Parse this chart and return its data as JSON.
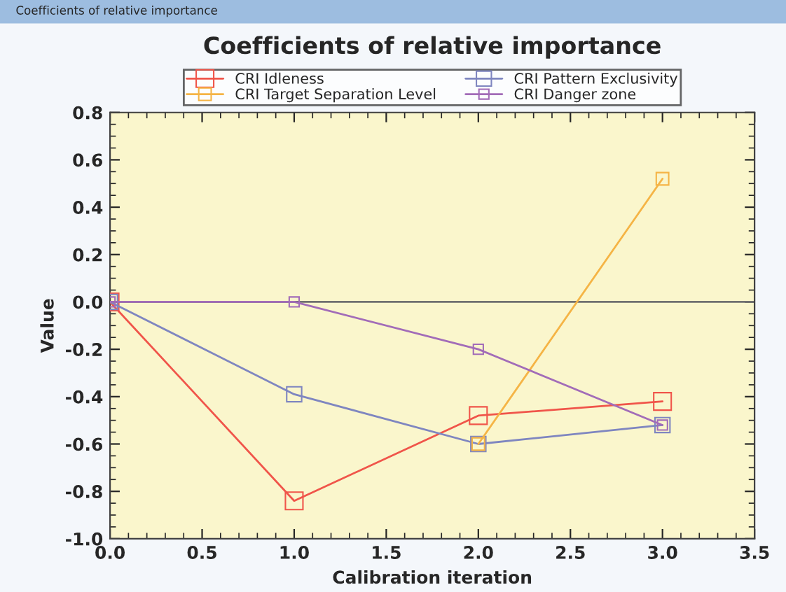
{
  "chart_data": {
    "type": "line",
    "title": "Coefficients of relative importance",
    "xlabel": "Calibration iteration",
    "ylabel": "Value",
    "annotations": [
      "Coefficients of relative importance"
    ],
    "x": [
      0,
      1,
      2,
      3
    ],
    "series": [
      {
        "name": "CRI Idleness",
        "color": "#f0554a",
        "values": [
          0,
          -0.84,
          -0.48,
          -0.42
        ]
      },
      {
        "name": "CRI Pattern Exclusivity",
        "color": "#7f86c0",
        "values": [
          0,
          -0.39,
          -0.6,
          -0.52
        ]
      },
      {
        "name": "CRI Target Separation Level",
        "color": "#f5b445",
        "values": [
          null,
          null,
          -0.6,
          0.52
        ]
      },
      {
        "name": "CRI Danger zone",
        "color": "#a26cb8",
        "values": [
          0,
          0,
          -0.2,
          -0.52
        ]
      }
    ],
    "xlim": [
      0,
      3.5
    ],
    "xticks": [
      {
        "value": 0,
        "label": "0.0"
      },
      0.5,
      {
        "value": 1,
        "label": "1.0"
      },
      1.5,
      {
        "value": 2,
        "label": "2.0"
      },
      2.5,
      {
        "value": 3,
        "label": "3.0"
      },
      3.5
    ],
    "ylim": [
      -1.0,
      0.8
    ],
    "yticks": [
      {
        "value": -1,
        "label": "-1.0"
      },
      -0.8,
      -0.6,
      -0.4,
      -0.2,
      {
        "value": 0,
        "label": "0.0"
      },
      0.2,
      0.4,
      0.6,
      0.8
    ],
    "ref_lines": [
      {
        "axis": "y",
        "value": 0,
        "color": "#707070"
      }
    ],
    "marker": "square",
    "line_style": "solid",
    "grid": false,
    "legend": "top"
  }
}
